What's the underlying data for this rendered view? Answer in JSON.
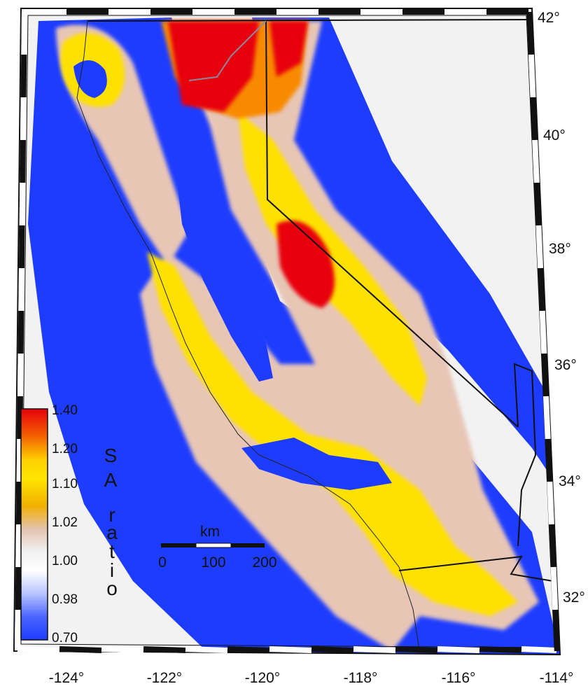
{
  "map": {
    "longitude_ticks": [
      "-124°",
      "-122°",
      "-120°",
      "-118°",
      "-116°",
      "-114°"
    ],
    "latitude_ticks": [
      "42°",
      "40°",
      "38°",
      "36°",
      "34°",
      "32°"
    ],
    "colors": {
      "high": "#e8000b",
      "orange": "#f88a00",
      "yellow": "#ffe100",
      "tan": "#e7c6b6",
      "neutral": "#f2f2f2",
      "low": "#1e3cff",
      "border": "#111111",
      "coast": "#222222",
      "river": "#8a8aa0"
    }
  },
  "legend": {
    "labels": [
      "1.40",
      "1.20",
      "1.10",
      "1.02",
      "1.00",
      "0.98",
      "0.70"
    ],
    "title_letters": [
      "S",
      "A",
      "r",
      "a",
      "t",
      "i",
      "o"
    ]
  },
  "scale_bar": {
    "unit": "km",
    "labels": [
      "0",
      "100",
      "200"
    ]
  }
}
